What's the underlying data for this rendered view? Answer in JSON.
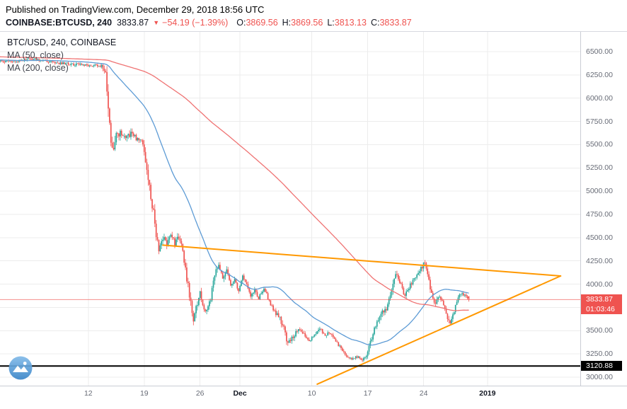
{
  "header": {
    "published": "Published on TradingView.com, December 29, 2018 18:56 UTC",
    "symbol": "COINBASE:BTCUSD, 240",
    "last_price": "3833.87",
    "direction_arrow": "▼",
    "change": "−54.19 (−1.39%)",
    "ohlc": {
      "o_label": "O:",
      "o_value": "3869.56",
      "h_label": "H:",
      "h_value": "3869.56",
      "l_label": "L:",
      "l_value": "3813.13",
      "c_label": "C:",
      "c_value": "3833.87"
    }
  },
  "chart_data": {
    "type": "candlestick",
    "title": "BTC/USD, 240, COINBASE",
    "legend": [
      "BTC/USD, 240, COINBASE",
      "MA (50, close)",
      "MA (200, close)"
    ],
    "ylim": [
      2909,
      6713
    ],
    "y_ticks": [
      6500,
      6250,
      6000,
      5750,
      5500,
      5250,
      5000,
      4750,
      4500,
      4250,
      4000,
      3750,
      3500,
      3250,
      3000
    ],
    "x_ticks": [
      {
        "index": 60,
        "label": "12",
        "major": false
      },
      {
        "index": 102,
        "label": "19",
        "major": false
      },
      {
        "index": 144,
        "label": "26",
        "major": false
      },
      {
        "index": 174,
        "label": "Dec",
        "major": true
      },
      {
        "index": 228,
        "label": "10",
        "major": false
      },
      {
        "index": 270,
        "label": "17",
        "major": false
      },
      {
        "index": 312,
        "label": "24",
        "major": false
      },
      {
        "index": 360,
        "label": "2019",
        "major": true
      }
    ],
    "candle_spacing": 1.88,
    "x_offset": 12,
    "seed": 20181229,
    "history_start": -210,
    "last_index": 346,
    "price_keyframes": [
      [
        -210,
        6480
      ],
      [
        -120,
        6455
      ],
      [
        -60,
        6430
      ],
      [
        0,
        6395
      ],
      [
        20,
        6420
      ],
      [
        40,
        6375
      ],
      [
        56,
        6355
      ],
      [
        70,
        6345
      ],
      [
        73,
        6300
      ],
      [
        74,
        6080
      ],
      [
        76,
        5700
      ],
      [
        78,
        5420
      ],
      [
        80,
        5560
      ],
      [
        84,
        5640
      ],
      [
        88,
        5560
      ],
      [
        92,
        5620
      ],
      [
        96,
        5570
      ],
      [
        100,
        5560
      ],
      [
        103,
        5350
      ],
      [
        105,
        5080
      ],
      [
        107,
        4950
      ],
      [
        109,
        4800
      ],
      [
        111,
        4520
      ],
      [
        113,
        4350
      ],
      [
        116,
        4500
      ],
      [
        119,
        4440
      ],
      [
        122,
        4560
      ],
      [
        125,
        4430
      ],
      [
        128,
        4520
      ],
      [
        131,
        4350
      ],
      [
        134,
        4060
      ],
      [
        137,
        3800
      ],
      [
        139,
        3560
      ],
      [
        141,
        3750
      ],
      [
        144,
        3900
      ],
      [
        146,
        3760
      ],
      [
        149,
        3720
      ],
      [
        152,
        3850
      ],
      [
        155,
        4100
      ],
      [
        158,
        4220
      ],
      [
        161,
        4080
      ],
      [
        164,
        4150
      ],
      [
        167,
        3980
      ],
      [
        170,
        4050
      ],
      [
        173,
        3920
      ],
      [
        176,
        4080
      ],
      [
        179,
        4020
      ],
      [
        182,
        3870
      ],
      [
        185,
        3930
      ],
      [
        188,
        3850
      ],
      [
        192,
        3960
      ],
      [
        196,
        3820
      ],
      [
        200,
        3700
      ],
      [
        204,
        3640
      ],
      [
        207,
        3520
      ],
      [
        209,
        3400
      ],
      [
        211,
        3370
      ],
      [
        214,
        3430
      ],
      [
        218,
        3520
      ],
      [
        222,
        3460
      ],
      [
        226,
        3390
      ],
      [
        230,
        3450
      ],
      [
        234,
        3520
      ],
      [
        238,
        3460
      ],
      [
        242,
        3480
      ],
      [
        246,
        3390
      ],
      [
        250,
        3310
      ],
      [
        254,
        3230
      ],
      [
        258,
        3190
      ],
      [
        262,
        3220
      ],
      [
        266,
        3190
      ],
      [
        269,
        3230
      ],
      [
        272,
        3380
      ],
      [
        275,
        3520
      ],
      [
        278,
        3640
      ],
      [
        281,
        3690
      ],
      [
        284,
        3740
      ],
      [
        287,
        3900
      ],
      [
        290,
        4080
      ],
      [
        292,
        4130
      ],
      [
        295,
        3980
      ],
      [
        298,
        3880
      ],
      [
        301,
        3960
      ],
      [
        304,
        4040
      ],
      [
        307,
        4090
      ],
      [
        310,
        4170
      ],
      [
        313,
        4230
      ],
      [
        315,
        4130
      ],
      [
        318,
        3890
      ],
      [
        321,
        3790
      ],
      [
        324,
        3860
      ],
      [
        327,
        3780
      ],
      [
        330,
        3600
      ],
      [
        332,
        3570
      ],
      [
        335,
        3720
      ],
      [
        338,
        3860
      ],
      [
        341,
        3900
      ],
      [
        344,
        3870
      ],
      [
        346,
        3834
      ]
    ],
    "volatility_keyframes": [
      [
        -210,
        55
      ],
      [
        70,
        55
      ],
      [
        73,
        160
      ],
      [
        75,
        260
      ],
      [
        79,
        240
      ],
      [
        83,
        130
      ],
      [
        100,
        90
      ],
      [
        104,
        200
      ],
      [
        108,
        240
      ],
      [
        113,
        170
      ],
      [
        118,
        120
      ],
      [
        130,
        110
      ],
      [
        136,
        180
      ],
      [
        140,
        160
      ],
      [
        146,
        110
      ],
      [
        155,
        130
      ],
      [
        160,
        110
      ],
      [
        175,
        95
      ],
      [
        190,
        85
      ],
      [
        200,
        80
      ],
      [
        207,
        130
      ],
      [
        212,
        110
      ],
      [
        225,
        70
      ],
      [
        240,
        75
      ],
      [
        252,
        65
      ],
      [
        262,
        55
      ],
      [
        268,
        60
      ],
      [
        272,
        110
      ],
      [
        278,
        120
      ],
      [
        284,
        110
      ],
      [
        288,
        150
      ],
      [
        293,
        130
      ],
      [
        300,
        100
      ],
      [
        308,
        110
      ],
      [
        313,
        120
      ],
      [
        318,
        110
      ],
      [
        325,
        90
      ],
      [
        331,
        110
      ],
      [
        337,
        90
      ],
      [
        343,
        70
      ],
      [
        346,
        60
      ]
    ],
    "last_candle": {
      "o": 3869.56,
      "h": 3869.56,
      "l": 3813.13,
      "c": 3833.87
    },
    "last_price_label": "3833.87",
    "countdown": "01:03:46",
    "level_line": {
      "price": 3120.88,
      "label": "3120.88"
    },
    "trendlines": [
      {
        "from": [
          116,
          4420
        ],
        "to": [
          415,
          4088
        ]
      },
      {
        "from": [
          232,
          2925
        ],
        "to": [
          415,
          4088
        ]
      }
    ],
    "ma": [
      {
        "name": "MA (50, close)",
        "period": 50
      },
      {
        "name": "MA (200, close)",
        "period": 200
      }
    ],
    "colors": {
      "up": "#26a69a",
      "down": "#ef5350",
      "ma50": "#5d9bd5",
      "ma200": "#ef7373",
      "trendline": "#ff9800",
      "grid": "#ececec",
      "axis_text": "#676b76",
      "price_label_bg": "#ef5350",
      "level_label_bg": "#000000"
    }
  }
}
